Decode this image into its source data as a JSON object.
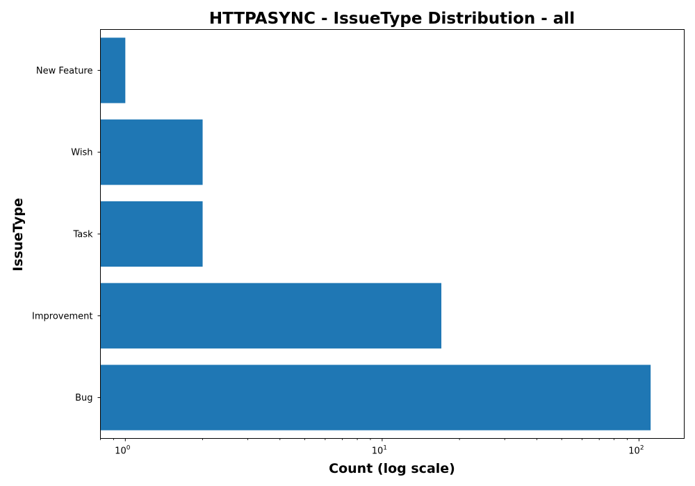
{
  "chart_data": {
    "type": "bar",
    "orientation": "horizontal",
    "title": "HTTPASYNC - IssueType Distribution - all",
    "xlabel": "Count (log scale)",
    "ylabel": "IssueType",
    "x_scale": "log",
    "xlim": [
      0.8,
      150
    ],
    "x_ticks": [
      {
        "value": 1,
        "base": "10",
        "exp": "0"
      },
      {
        "value": 10,
        "base": "10",
        "exp": "1"
      },
      {
        "value": 100,
        "base": "10",
        "exp": "2"
      }
    ],
    "categories": [
      "Bug",
      "Improvement",
      "Task",
      "Wish",
      "New Feature"
    ],
    "values": [
      111,
      17,
      2,
      2,
      1
    ],
    "bar_color": "#1f77b4",
    "grid": false,
    "legend": "none"
  }
}
